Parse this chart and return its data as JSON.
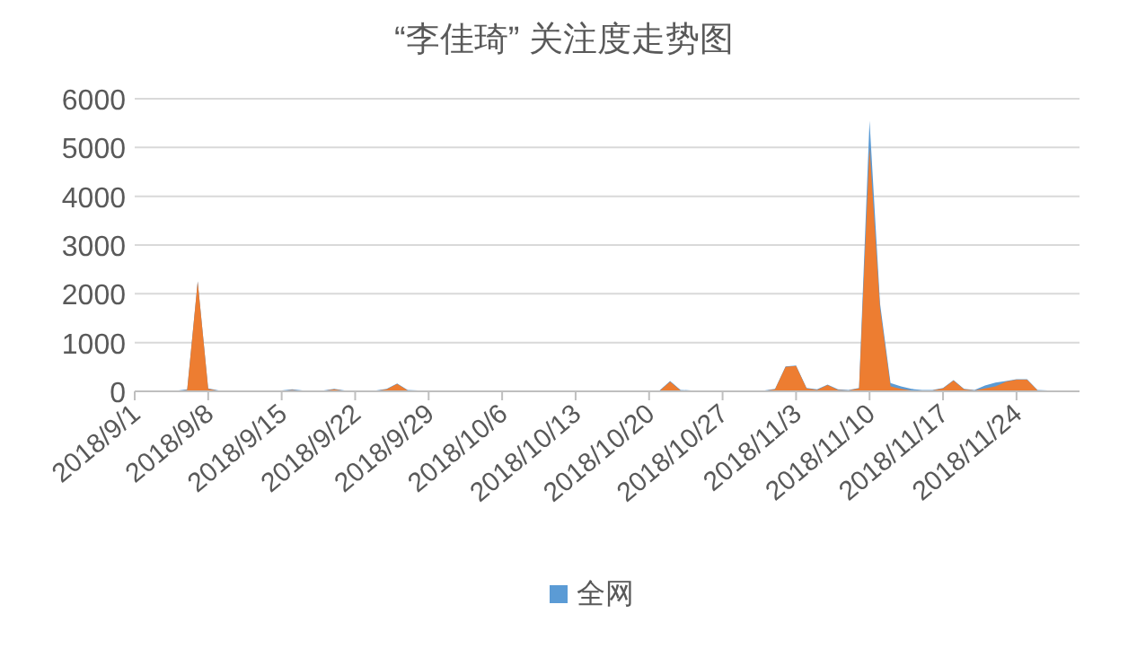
{
  "chart_data": {
    "type": "area",
    "title": "“李佳琦” 关注度走势图",
    "x": [
      "2018-09-01",
      "2018-09-02",
      "2018-09-03",
      "2018-09-04",
      "2018-09-05",
      "2018-09-06",
      "2018-09-07",
      "2018-09-08",
      "2018-09-09",
      "2018-09-10",
      "2018-09-11",
      "2018-09-12",
      "2018-09-13",
      "2018-09-14",
      "2018-09-15",
      "2018-09-16",
      "2018-09-17",
      "2018-09-18",
      "2018-09-19",
      "2018-09-20",
      "2018-09-21",
      "2018-09-22",
      "2018-09-23",
      "2018-09-24",
      "2018-09-25",
      "2018-09-26",
      "2018-09-27",
      "2018-09-28",
      "2018-09-29",
      "2018-09-30",
      "2018-10-01",
      "2018-10-02",
      "2018-10-03",
      "2018-10-04",
      "2018-10-05",
      "2018-10-06",
      "2018-10-07",
      "2018-10-08",
      "2018-10-09",
      "2018-10-10",
      "2018-10-11",
      "2018-10-12",
      "2018-10-13",
      "2018-10-14",
      "2018-10-15",
      "2018-10-16",
      "2018-10-17",
      "2018-10-18",
      "2018-10-19",
      "2018-10-20",
      "2018-10-21",
      "2018-10-22",
      "2018-10-23",
      "2018-10-24",
      "2018-10-25",
      "2018-10-26",
      "2018-10-27",
      "2018-10-28",
      "2018-10-29",
      "2018-10-30",
      "2018-10-31",
      "2018-11-01",
      "2018-11-02",
      "2018-11-03",
      "2018-11-04",
      "2018-11-05",
      "2018-11-06",
      "2018-11-07",
      "2018-11-08",
      "2018-11-09",
      "2018-11-10",
      "2018-11-11",
      "2018-11-12",
      "2018-11-13",
      "2018-11-14",
      "2018-11-15",
      "2018-11-16",
      "2018-11-17",
      "2018-11-18",
      "2018-11-19",
      "2018-11-20",
      "2018-11-21",
      "2018-11-22",
      "2018-11-23",
      "2018-11-24",
      "2018-11-25",
      "2018-11-26",
      "2018-11-27",
      "2018-11-28",
      "2018-11-29",
      "2018-11-30"
    ],
    "series": [
      {
        "name": "全网",
        "color": "#5b9bd5",
        "values": [
          15,
          15,
          15,
          15,
          15,
          40,
          2260,
          60,
          20,
          20,
          20,
          20,
          20,
          20,
          20,
          40,
          20,
          20,
          20,
          50,
          20,
          20,
          20,
          20,
          50,
          160,
          30,
          20,
          20,
          20,
          20,
          20,
          20,
          20,
          20,
          20,
          20,
          20,
          20,
          20,
          20,
          20,
          20,
          20,
          20,
          20,
          20,
          20,
          20,
          20,
          20,
          210,
          30,
          20,
          20,
          20,
          20,
          20,
          20,
          20,
          20,
          50,
          510,
          530,
          70,
          40,
          140,
          40,
          30,
          70,
          5550,
          1800,
          170,
          100,
          50,
          30,
          30,
          70,
          230,
          50,
          30,
          120,
          180,
          210,
          250,
          250,
          30,
          20,
          20,
          20,
          20
        ]
      },
      {
        "color": "#ed7d31",
        "values": [
          5,
          5,
          5,
          5,
          5,
          30,
          2250,
          50,
          10,
          10,
          10,
          10,
          10,
          10,
          10,
          30,
          10,
          10,
          10,
          40,
          10,
          10,
          10,
          10,
          40,
          150,
          20,
          10,
          10,
          10,
          10,
          10,
          10,
          10,
          10,
          10,
          10,
          10,
          10,
          10,
          10,
          10,
          10,
          10,
          10,
          10,
          10,
          10,
          10,
          10,
          10,
          200,
          20,
          10,
          10,
          10,
          10,
          10,
          10,
          10,
          10,
          40,
          500,
          520,
          60,
          30,
          130,
          30,
          20,
          60,
          5000,
          1700,
          100,
          50,
          20,
          20,
          20,
          60,
          220,
          40,
          20,
          60,
          100,
          200,
          240,
          240,
          20,
          10,
          10,
          10,
          10
        ]
      }
    ],
    "xlim": [
      "2018-09-01",
      "2018-11-30"
    ],
    "xticks": [
      {
        "value": "2018-09-01",
        "label": "2018/9/1"
      },
      {
        "value": "2018-09-08",
        "label": "2018/9/8"
      },
      {
        "value": "2018-09-15",
        "label": "2018/9/15"
      },
      {
        "value": "2018-09-22",
        "label": "2018/9/22"
      },
      {
        "value": "2018-09-29",
        "label": "2018/9/29"
      },
      {
        "value": "2018-10-06",
        "label": "2018/10/6"
      },
      {
        "value": "2018-10-13",
        "label": "2018/10/13"
      },
      {
        "value": "2018-10-20",
        "label": "2018/10/20"
      },
      {
        "value": "2018-10-27",
        "label": "2018/10/27"
      },
      {
        "value": "2018-11-03",
        "label": "2018/11/3"
      },
      {
        "value": "2018-11-10",
        "label": "2018/11/10"
      },
      {
        "value": "2018-11-17",
        "label": "2018/11/17"
      },
      {
        "value": "2018-11-24",
        "label": "2018/11/24"
      }
    ],
    "ylim": [
      0,
      6000
    ],
    "yticks": [
      0,
      1000,
      2000,
      3000,
      4000,
      5000,
      6000
    ],
    "grid": "y",
    "legend": "bottom"
  }
}
